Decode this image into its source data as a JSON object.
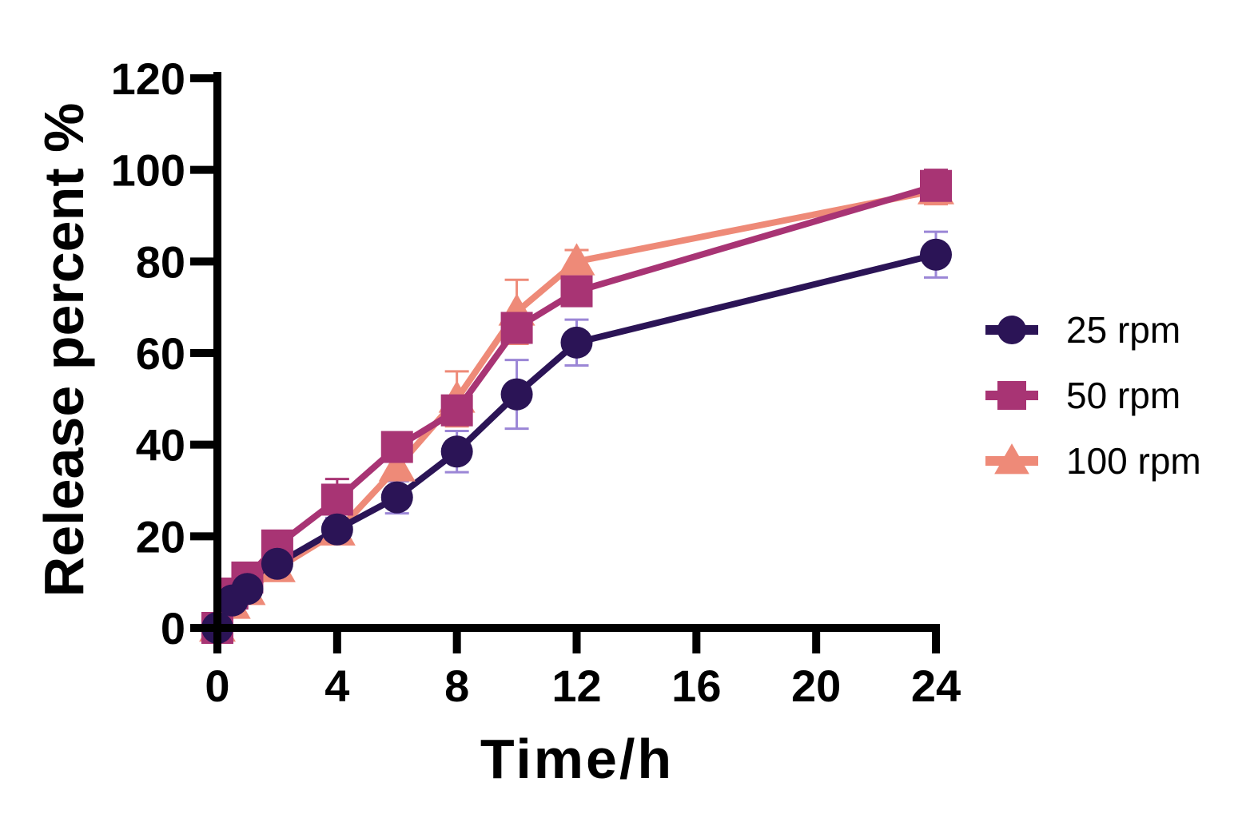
{
  "chart_data": {
    "type": "line",
    "xlabel": "Time/h",
    "ylabel": "Release percent %",
    "xlim": [
      0,
      24
    ],
    "ylim": [
      0,
      120
    ],
    "xticks": [
      "0",
      "4",
      "8",
      "12",
      "16",
      "20",
      "24"
    ],
    "yticks": [
      "0",
      "20",
      "40",
      "60",
      "80",
      "100",
      "120"
    ],
    "legend_position": "right",
    "x": [
      0,
      0.5,
      1,
      2,
      4,
      6,
      8,
      10,
      12,
      24
    ],
    "series": [
      {
        "name": "25 rpm",
        "marker": "circle",
        "color": "#2b1456",
        "error_color": "#9b86d6",
        "values": [
          0,
          6,
          8.5,
          14,
          21.5,
          28.5,
          38.5,
          51,
          62.3,
          81.5
        ],
        "errors": [
          0,
          1,
          1,
          1.5,
          2.5,
          3.5,
          4.5,
          7.5,
          5,
          5
        ]
      },
      {
        "name": "50 rpm",
        "marker": "square",
        "color": "#a83474",
        "error_color": "#a83474",
        "values": [
          0,
          7.5,
          11,
          18,
          28,
          39.5,
          47.5,
          65.5,
          73.5,
          96.5
        ],
        "errors": [
          0,
          1,
          1,
          1.5,
          4.5,
          1.5,
          2,
          3,
          1.5,
          3.5
        ]
      },
      {
        "name": "100 rpm",
        "marker": "triangle",
        "color": "#ee8a78",
        "error_color": "#ee8a78",
        "values": [
          0,
          5,
          8,
          13,
          21,
          35,
          50,
          69,
          80,
          95.5
        ],
        "errors": [
          0,
          1,
          1,
          2.5,
          2,
          2,
          6,
          7,
          2.5,
          3
        ]
      }
    ]
  }
}
